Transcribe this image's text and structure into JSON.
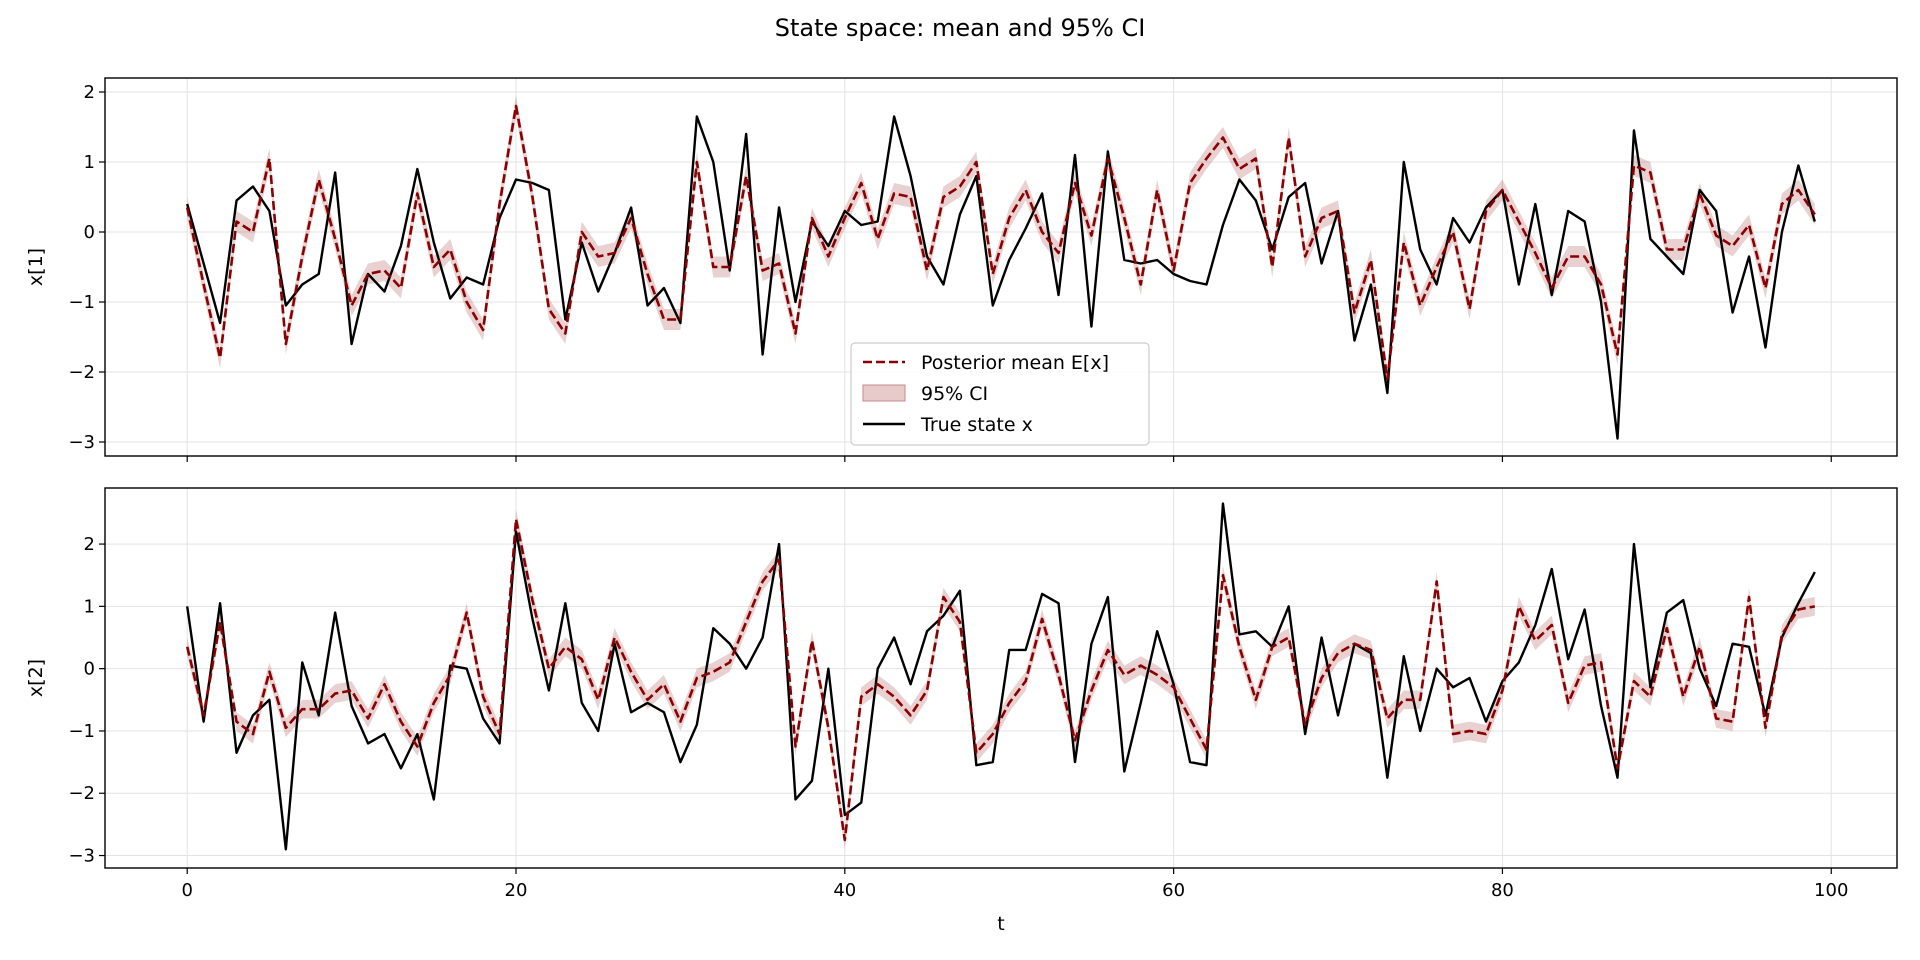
{
  "chart_data": {
    "type": "line",
    "title": "State space: mean and 95% CI",
    "xlabel": "t",
    "xlim": [
      -5,
      104
    ],
    "xticks": [
      0,
      20,
      40,
      60,
      80,
      100
    ],
    "grid": true,
    "legend": {
      "placement": "bottom-center",
      "entries": [
        {
          "label": "Posterior mean E[x]",
          "style": "dashed",
          "color": "#8b0000"
        },
        {
          "label": "95% CI",
          "style": "band",
          "color": "#c98a8a"
        },
        {
          "label": "True state x",
          "style": "solid",
          "color": "#000000"
        }
      ]
    },
    "panels": [
      {
        "ylabel": "x[1]",
        "ylim": [
          -3.2,
          2.2
        ],
        "yticks": [
          -3,
          -2,
          -1,
          0,
          1,
          2
        ],
        "legend_shown": true,
        "series": [
          {
            "name": "Posterior mean E[x]",
            "ci_halfwidth": 0.15,
            "values": [
              0.35,
              -0.75,
              -1.8,
              0.15,
              0.0,
              1.05,
              -1.6,
              -0.35,
              0.75,
              -0.1,
              -1.05,
              -0.6,
              -0.55,
              -0.8,
              0.55,
              -0.5,
              -0.25,
              -1.0,
              -1.4,
              0.4,
              1.8,
              0.5,
              -1.1,
              -1.45,
              0.0,
              -0.35,
              -0.3,
              0.2,
              -0.6,
              -1.25,
              -1.25,
              1.0,
              -0.5,
              -0.5,
              0.8,
              -0.55,
              -0.45,
              -1.45,
              0.2,
              -0.35,
              0.2,
              0.7,
              -0.1,
              0.55,
              0.5,
              -0.55,
              0.5,
              0.65,
              1.0,
              -0.6,
              0.2,
              0.6,
              0.0,
              -0.3,
              0.7,
              -0.05,
              1.05,
              0.2,
              -0.75,
              0.6,
              -0.55,
              0.7,
              1.05,
              1.35,
              0.9,
              1.05,
              -0.5,
              1.35,
              -0.35,
              0.2,
              0.3,
              -1.15,
              -0.4,
              -2.1,
              -0.15,
              -1.05,
              -0.5,
              0.0,
              -1.1,
              0.3,
              0.6,
              0.15,
              -0.3,
              -0.8,
              -0.35,
              -0.35,
              -0.75,
              -1.75,
              0.95,
              0.85,
              -0.25,
              -0.25,
              0.55,
              -0.05,
              -0.2,
              0.1,
              -0.8,
              0.4,
              0.6,
              0.25
            ]
          },
          {
            "name": "True state x",
            "values": [
              0.4,
              -0.45,
              -1.3,
              0.45,
              0.65,
              0.3,
              -1.05,
              -0.75,
              -0.6,
              0.85,
              -1.6,
              -0.6,
              -0.85,
              -0.2,
              0.9,
              -0.15,
              -0.95,
              -0.65,
              -0.75,
              0.2,
              0.75,
              0.7,
              0.6,
              -1.25,
              -0.15,
              -0.85,
              -0.3,
              0.35,
              -1.05,
              -0.8,
              -1.3,
              1.65,
              1.0,
              -0.55,
              1.4,
              -1.75,
              0.35,
              -1.0,
              0.15,
              -0.2,
              0.3,
              0.1,
              0.15,
              1.65,
              0.8,
              -0.35,
              -0.75,
              0.25,
              0.8,
              -1.05,
              -0.4,
              0.05,
              0.55,
              -0.9,
              1.1,
              -1.35,
              1.15,
              -0.4,
              -0.45,
              -0.4,
              -0.6,
              -0.7,
              -0.75,
              0.1,
              0.75,
              0.45,
              -0.25,
              0.5,
              0.7,
              -0.45,
              0.3,
              -1.55,
              -0.75,
              -2.3,
              1.0,
              -0.25,
              -0.75,
              0.2,
              -0.15,
              0.35,
              0.6,
              -0.75,
              0.4,
              -0.9,
              0.3,
              0.15,
              -1.0,
              -2.95,
              1.45,
              -0.1,
              -0.35,
              -0.6,
              0.6,
              0.3,
              -1.15,
              -0.35,
              -1.65,
              0.0,
              0.95,
              0.15
            ]
          }
        ]
      },
      {
        "ylabel": "x[2]",
        "ylim": [
          -3.2,
          2.9
        ],
        "yticks": [
          -3,
          -2,
          -1,
          0,
          1,
          2
        ],
        "legend_shown": false,
        "series": [
          {
            "name": "Posterior mean E[x]",
            "ci_halfwidth": 0.15,
            "values": [
              0.35,
              -0.75,
              0.75,
              -0.85,
              -1.05,
              -0.05,
              -0.95,
              -0.65,
              -0.65,
              -0.4,
              -0.35,
              -0.8,
              -0.25,
              -0.85,
              -1.25,
              -0.55,
              -0.1,
              0.9,
              -0.45,
              -1.05,
              2.4,
              1.1,
              0.0,
              0.35,
              0.15,
              -0.5,
              0.5,
              -0.05,
              -0.5,
              -0.25,
              -0.85,
              -0.15,
              -0.05,
              0.1,
              0.75,
              1.4,
              1.75,
              -1.25,
              0.45,
              -0.95,
              -2.75,
              -0.45,
              -0.25,
              -0.45,
              -0.75,
              -0.35,
              1.15,
              0.75,
              -1.35,
              -1.05,
              -0.55,
              -0.2,
              0.8,
              -0.1,
              -1.15,
              -0.35,
              0.3,
              -0.1,
              0.05,
              -0.1,
              -0.3,
              -0.8,
              -1.3,
              1.5,
              0.35,
              -0.5,
              0.35,
              0.5,
              -0.9,
              -0.15,
              0.25,
              0.4,
              0.3,
              -0.8,
              -0.5,
              -0.5,
              1.4,
              -1.05,
              -1.0,
              -1.05,
              -0.35,
              1.0,
              0.45,
              0.7,
              -0.55,
              0.05,
              0.1,
              -1.6,
              -0.2,
              -0.45,
              0.65,
              -0.45,
              0.35,
              -0.8,
              -0.85,
              1.15,
              -0.95,
              0.55,
              0.95,
              1.0
            ]
          },
          {
            "name": "True state x",
            "values": [
              1.0,
              -0.85,
              1.05,
              -1.35,
              -0.75,
              -0.5,
              -2.9,
              0.1,
              -0.75,
              0.9,
              -0.6,
              -1.2,
              -1.05,
              -1.6,
              -1.05,
              -2.1,
              0.05,
              0.0,
              -0.8,
              -1.2,
              2.2,
              0.8,
              -0.35,
              1.05,
              -0.55,
              -1.0,
              0.4,
              -0.7,
              -0.55,
              -0.7,
              -1.5,
              -0.9,
              0.65,
              0.4,
              0.0,
              0.5,
              2.0,
              -2.1,
              -1.8,
              0.0,
              -2.35,
              -2.15,
              0.0,
              0.5,
              -0.25,
              0.6,
              0.85,
              1.25,
              -1.55,
              -1.5,
              0.3,
              0.3,
              1.2,
              1.05,
              -1.5,
              0.4,
              1.15,
              -1.65,
              -0.55,
              0.6,
              -0.25,
              -1.5,
              -1.55,
              2.65,
              0.55,
              0.6,
              0.35,
              1.0,
              -1.05,
              0.5,
              -0.75,
              0.4,
              0.25,
              -1.75,
              0.2,
              -1.0,
              0.0,
              -0.3,
              -0.15,
              -0.85,
              -0.2,
              0.1,
              0.7,
              1.6,
              0.15,
              0.95,
              -0.6,
              -1.75,
              2.0,
              -0.3,
              0.9,
              1.1,
              0.0,
              -0.6,
              0.4,
              0.35,
              -0.75,
              0.5,
              1.05,
              1.55
            ]
          }
        ]
      }
    ]
  }
}
